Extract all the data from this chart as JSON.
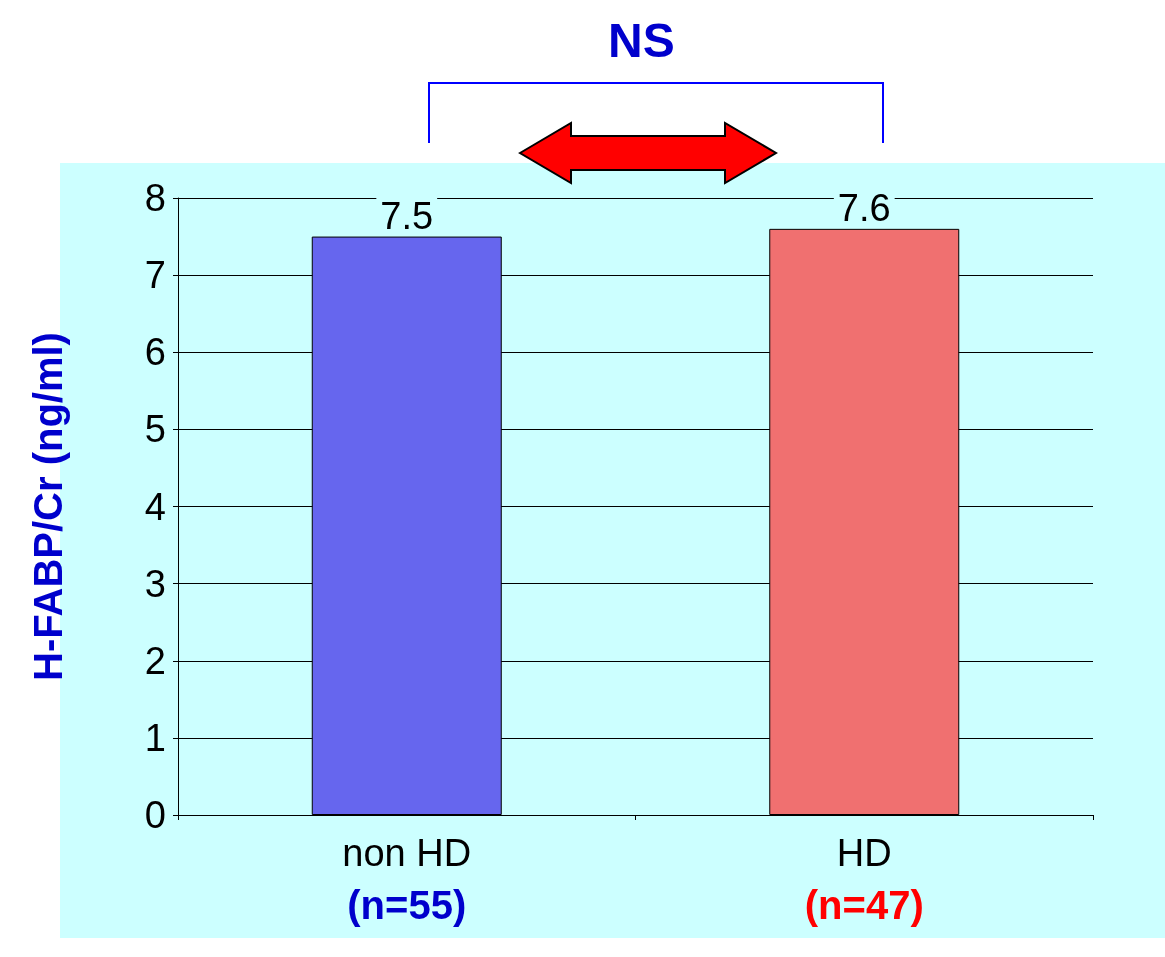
{
  "chart_data": {
    "type": "bar",
    "ylabel": "H-FABP/Cr (ng/ml)",
    "categories": [
      "non HD",
      "HD"
    ],
    "values": [
      7.5,
      7.6
    ],
    "colors": [
      "#6666ee",
      "#f07070"
    ],
    "ylim": [
      0,
      8
    ],
    "yticks": [
      0,
      1,
      2,
      3,
      4,
      5,
      6,
      7,
      8
    ],
    "grid": "y",
    "data_labels": true,
    "annotations": [
      "NS",
      "(n=55)",
      "(n=47)"
    ]
  }
}
